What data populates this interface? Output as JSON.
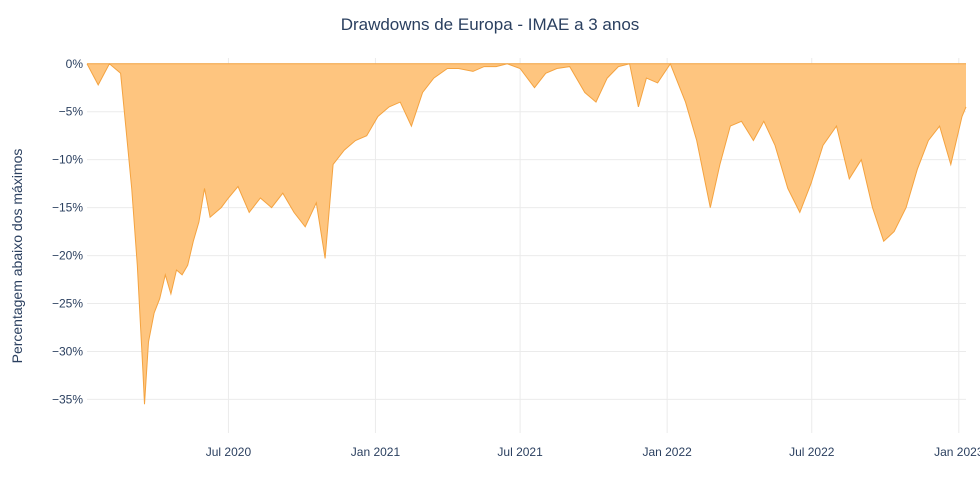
{
  "chart_data": {
    "type": "area",
    "title": "Drawdowns de Europa - IMAE a 3 anos",
    "xlabel": "",
    "ylabel": "Percentagem abaixo dos máximos",
    "y_unit": "%",
    "ylim": [
      -38.5,
      0.6
    ],
    "xlim": [
      "2020-01-06",
      "2023-01-10"
    ],
    "y_ticks": [
      0,
      -5,
      -10,
      -15,
      -20,
      -25,
      -30,
      -35
    ],
    "y_tick_labels": [
      "0%",
      "−5%",
      "−10%",
      "−15%",
      "−20%",
      "−25%",
      "−30%",
      "−35%"
    ],
    "x_ticks": [
      "2020-07-01",
      "2021-01-01",
      "2021-07-01",
      "2022-01-01",
      "2022-07-01",
      "2023-01-01"
    ],
    "x_tick_labels": [
      "Jul 2020",
      "Jan 2021",
      "Jul 2021",
      "Jan 2022",
      "Jul 2022",
      "Jan 2023"
    ],
    "grid": true,
    "fill_color": "#fec57f",
    "line_color": "#f4a340",
    "series": [
      {
        "x": [
          "2020-01-06",
          "2020-01-20",
          "2020-02-03",
          "2020-02-17",
          "2020-02-24",
          "2020-03-02",
          "2020-03-09",
          "2020-03-16",
          "2020-03-18",
          "2020-03-23",
          "2020-03-30",
          "2020-04-06",
          "2020-04-13",
          "2020-04-20",
          "2020-04-27",
          "2020-05-04",
          "2020-05-11",
          "2020-05-18",
          "2020-05-25",
          "2020-06-01",
          "2020-06-08",
          "2020-06-15",
          "2020-06-22",
          "2020-07-01",
          "2020-07-13",
          "2020-07-27",
          "2020-08-10",
          "2020-08-24",
          "2020-09-07",
          "2020-09-21",
          "2020-10-05",
          "2020-10-19",
          "2020-10-30",
          "2020-11-09",
          "2020-11-23",
          "2020-12-07",
          "2020-12-21",
          "2021-01-04",
          "2021-01-18",
          "2021-02-01",
          "2021-02-15",
          "2021-03-01",
          "2021-03-15",
          "2021-04-01",
          "2021-04-15",
          "2021-05-03",
          "2021-05-17",
          "2021-06-01",
          "2021-06-15",
          "2021-07-01",
          "2021-07-19",
          "2021-08-02",
          "2021-08-16",
          "2021-09-01",
          "2021-09-20",
          "2021-10-04",
          "2021-10-18",
          "2021-11-01",
          "2021-11-15",
          "2021-11-26",
          "2021-12-06",
          "2021-12-20",
          "2022-01-05",
          "2022-01-24",
          "2022-02-07",
          "2022-02-24",
          "2022-03-08",
          "2022-03-21",
          "2022-04-04",
          "2022-04-19",
          "2022-05-02",
          "2022-05-16",
          "2022-06-01",
          "2022-06-16",
          "2022-06-30",
          "2022-07-15",
          "2022-08-01",
          "2022-08-17",
          "2022-09-01",
          "2022-09-15",
          "2022-09-29",
          "2022-10-12",
          "2022-10-27",
          "2022-11-10",
          "2022-11-24",
          "2022-12-08",
          "2022-12-22",
          "2023-01-05",
          "2023-01-10"
        ],
        "y": [
          0,
          -2.2,
          0,
          -1.0,
          -7.0,
          -13.0,
          -21.0,
          -32.0,
          -35.5,
          -29.0,
          -26.0,
          -24.5,
          -22.0,
          -24.0,
          -21.5,
          -22.0,
          -21.0,
          -18.5,
          -16.5,
          -13.0,
          -16.0,
          -15.5,
          -15.0,
          -14.0,
          -12.8,
          -15.5,
          -14.0,
          -15.0,
          -13.5,
          -15.5,
          -17.0,
          -14.5,
          -20.3,
          -10.5,
          -9.0,
          -8.0,
          -7.5,
          -5.5,
          -4.5,
          -4.0,
          -6.5,
          -3.0,
          -1.5,
          -0.5,
          -0.5,
          -0.8,
          -0.3,
          -0.3,
          0,
          -0.5,
          -2.5,
          -1.0,
          -0.5,
          -0.3,
          -3.0,
          -4.0,
          -1.5,
          -0.3,
          0,
          -4.5,
          -1.5,
          -2.0,
          0,
          -4.0,
          -8.0,
          -15.0,
          -10.5,
          -6.5,
          -6.0,
          -8.0,
          -6.0,
          -8.5,
          -13.0,
          -15.5,
          -12.5,
          -8.5,
          -6.5,
          -12.0,
          -10.0,
          -15.0,
          -18.5,
          -17.5,
          -15.0,
          -11.0,
          -8.0,
          -6.5,
          -10.5,
          -5.5,
          -4.5
        ]
      }
    ]
  }
}
